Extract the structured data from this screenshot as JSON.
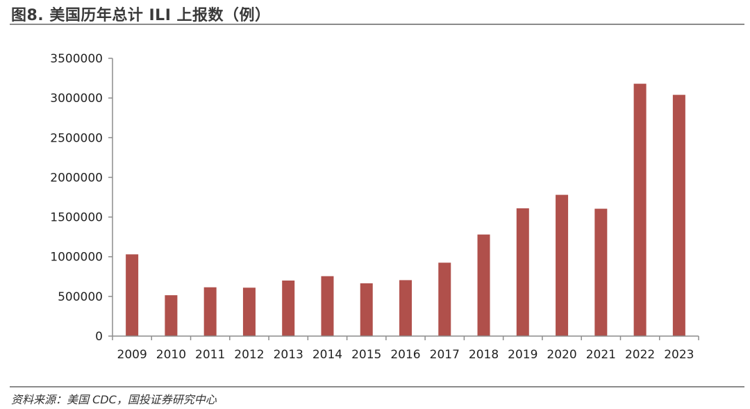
{
  "header": {
    "title": "图8. 美国历年总计 ILI 上报数（例）"
  },
  "footer": {
    "source": "资料来源：美国 CDC，国投证券研究中心"
  },
  "chart_data": {
    "type": "bar",
    "title": "图8. 美国历年总计 ILI 上报数（例）",
    "xlabel": "",
    "ylabel": "",
    "categories": [
      "2009",
      "2010",
      "2011",
      "2012",
      "2013",
      "2014",
      "2015",
      "2016",
      "2017",
      "2018",
      "2019",
      "2020",
      "2021",
      "2022",
      "2023"
    ],
    "values": [
      1030000,
      515000,
      615000,
      610000,
      700000,
      755000,
      665000,
      705000,
      925000,
      1280000,
      1610000,
      1780000,
      1605000,
      3180000,
      3040000
    ],
    "yticks": [
      0,
      500000,
      1000000,
      1500000,
      2000000,
      2500000,
      3000000,
      3500000
    ],
    "ylim": [
      0,
      3500000
    ],
    "grid": false,
    "legend": "none",
    "bar_color": "#b0504b",
    "axis_color": "#8c8c8c"
  }
}
